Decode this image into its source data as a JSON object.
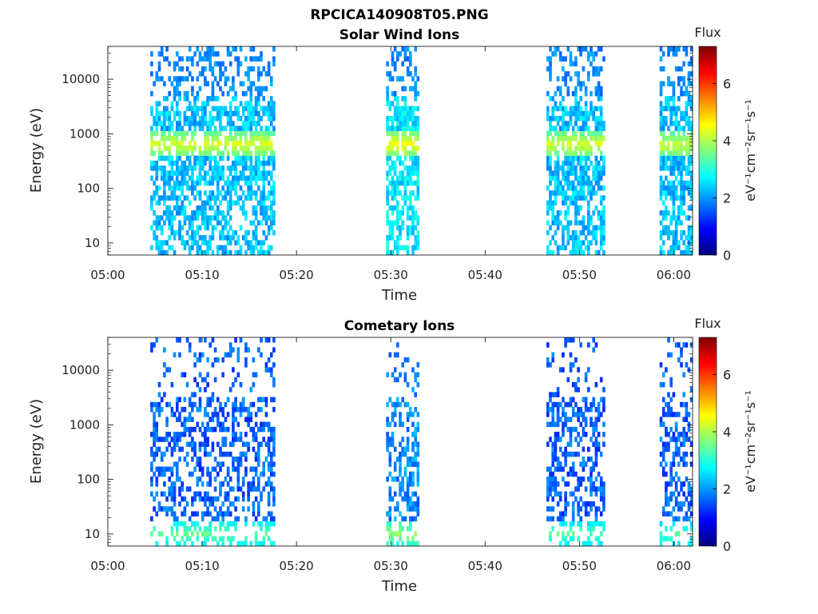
{
  "figure": {
    "title": "RPCICA140908T05.PNG"
  },
  "chart_data": [
    {
      "type": "heatmap",
      "title": "Solar Wind Ions",
      "xlabel": "Time",
      "ylabel": "Energy (eV)",
      "x_range": [
        "05:00",
        "06:02"
      ],
      "x_ticks": [
        "05:00",
        "05:10",
        "05:20",
        "05:30",
        "05:40",
        "05:50",
        "06:00"
      ],
      "y_scale": "log",
      "y_range": [
        6,
        40000
      ],
      "y_ticks": [
        "10",
        "100",
        "1000",
        "10000"
      ],
      "colorbar": {
        "title": "Flux",
        "label": "eV⁻¹cm⁻²sr⁻¹s⁻¹",
        "range": [
          0,
          7.3
        ],
        "ticks": [
          "0",
          "2",
          "4",
          "6"
        ],
        "colormap": "jet"
      },
      "grid": false,
      "data_blocks": [
        {
          "start": "05:04.5",
          "end": "05:17.5",
          "energy_min": 6,
          "energy_max": 40000,
          "peak_energy": 650,
          "peak_flux": 4.3,
          "typical_flux": 2.3
        },
        {
          "start": "05:29.5",
          "end": "05:33.0",
          "energy_min": 6,
          "energy_max": 40000,
          "peak_energy": 650,
          "peak_flux": 4.5,
          "typical_flux": 2.6
        },
        {
          "start": "05:46.5",
          "end": "05:52.5",
          "energy_min": 6,
          "energy_max": 40000,
          "peak_energy": 650,
          "peak_flux": 4.3,
          "typical_flux": 2.3
        },
        {
          "start": "05:58.5",
          "end": "06:02.0",
          "energy_min": 6,
          "energy_max": 40000,
          "peak_energy": 650,
          "peak_flux": 4.2,
          "typical_flux": 2.3
        }
      ]
    },
    {
      "type": "heatmap",
      "title": "Cometary Ions",
      "xlabel": "Time",
      "ylabel": "Energy (eV)",
      "x_range": [
        "05:00",
        "06:02"
      ],
      "x_ticks": [
        "05:00",
        "05:10",
        "05:20",
        "05:30",
        "05:40",
        "05:50",
        "06:00"
      ],
      "y_scale": "log",
      "y_range": [
        6,
        40000
      ],
      "y_ticks": [
        "10",
        "100",
        "1000",
        "10000"
      ],
      "colorbar": {
        "title": "Flux",
        "label": "eV⁻¹cm⁻²sr⁻¹s⁻¹",
        "range": [
          0,
          7.3
        ],
        "ticks": [
          "0",
          "2",
          "4",
          "6"
        ],
        "colormap": "jet"
      },
      "grid": false,
      "data_blocks": [
        {
          "start": "05:04.5",
          "end": "05:17.5",
          "energy_min": 6,
          "energy_max": 40000,
          "peak_energy": 10,
          "peak_flux": 3.5,
          "typical_flux": 1.6
        },
        {
          "start": "05:29.5",
          "end": "05:33.0",
          "energy_min": 6,
          "energy_max": 40000,
          "peak_energy": 10,
          "peak_flux": 3.8,
          "typical_flux": 1.9
        },
        {
          "start": "05:46.5",
          "end": "05:52.5",
          "energy_min": 6,
          "energy_max": 40000,
          "peak_energy": 10,
          "peak_flux": 3.4,
          "typical_flux": 1.6
        },
        {
          "start": "05:58.5",
          "end": "06:02.0",
          "energy_min": 6,
          "energy_max": 40000,
          "peak_energy": 10,
          "peak_flux": 3.3,
          "typical_flux": 1.6
        }
      ]
    }
  ]
}
